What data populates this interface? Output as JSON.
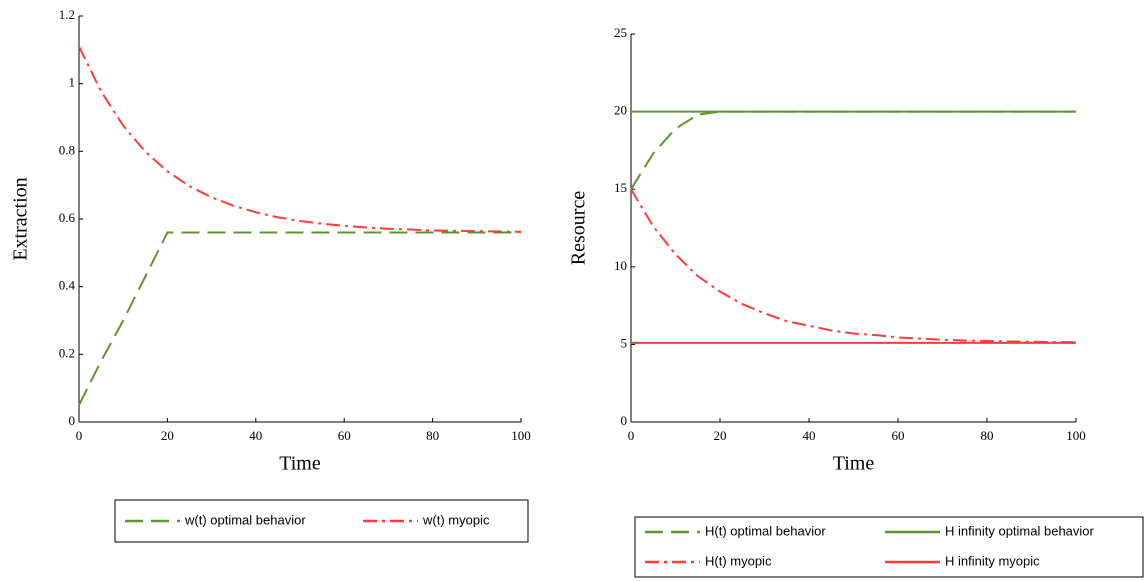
{
  "chart_data": [
    {
      "type": "line",
      "xlabel": "Time",
      "ylabel": "Extraction",
      "x": [
        0,
        5,
        10,
        15,
        20,
        25,
        30,
        35,
        40,
        45,
        50,
        55,
        60,
        65,
        70,
        75,
        80,
        85,
        90,
        95,
        100
      ],
      "xlim": [
        0,
        100
      ],
      "xticks": [
        0,
        20,
        40,
        60,
        80,
        100
      ],
      "ylim": [
        0,
        1.2
      ],
      "yticks": [
        0,
        0.2,
        0.4,
        0.6,
        0.8,
        1,
        1.2
      ],
      "legend": "bottom",
      "series": [
        {
          "name": "w(t) optimal behavior",
          "color": "#5f9634",
          "dash": "dashed",
          "values": [
            0.05,
            0.18,
            0.3,
            0.43,
            0.56,
            0.56,
            0.56,
            0.56,
            0.56,
            0.56,
            0.56,
            0.56,
            0.56,
            0.56,
            0.56,
            0.56,
            0.56,
            0.56,
            0.56,
            0.56,
            0.56
          ]
        },
        {
          "name": "w(t) myopic",
          "color": "#ff3b3b",
          "dash": "dashdot",
          "values": [
            1.11,
            0.977,
            0.876,
            0.799,
            0.741,
            0.697,
            0.664,
            0.639,
            0.62,
            0.605,
            0.594,
            0.586,
            0.58,
            0.575,
            0.571,
            0.569,
            0.566,
            0.565,
            0.564,
            0.563,
            0.562
          ]
        }
      ]
    },
    {
      "type": "line",
      "xlabel": "Time",
      "ylabel": "Resource",
      "x": [
        0,
        5,
        10,
        15,
        20,
        25,
        30,
        35,
        40,
        45,
        50,
        55,
        60,
        65,
        70,
        75,
        80,
        85,
        90,
        95,
        100
      ],
      "xlim": [
        0,
        100
      ],
      "xticks": [
        0,
        20,
        40,
        60,
        80,
        100
      ],
      "ylim": [
        0,
        25
      ],
      "yticks": [
        0,
        5,
        10,
        15,
        20,
        25
      ],
      "legend": "bottom",
      "series": [
        {
          "name": "H(t) optimal behavior",
          "color": "#5f9634",
          "dash": "dashed",
          "values": [
            15,
            17.3,
            18.9,
            19.8,
            20,
            20,
            20,
            20,
            20,
            20,
            20,
            20,
            20,
            20,
            20,
            20,
            20,
            20,
            20,
            20,
            20
          ]
        },
        {
          "name": "H infinity optimal behavior",
          "color": "#5f9634",
          "dash": "solid",
          "values": [
            20,
            20,
            20,
            20,
            20,
            20,
            20,
            20,
            20,
            20,
            20,
            20,
            20,
            20,
            20,
            20,
            20,
            20,
            20,
            20,
            20
          ]
        },
        {
          "name": "H(t) myopic",
          "color": "#ff3b3b",
          "dash": "dashdot",
          "values": [
            15,
            12.6,
            10.8,
            9.4,
            8.4,
            7.6,
            7,
            6.5,
            6.2,
            5.9,
            5.7,
            5.6,
            5.45,
            5.37,
            5.3,
            5.25,
            5.22,
            5.19,
            5.17,
            5.15,
            5.14
          ]
        },
        {
          "name": "H infinity myopic",
          "color": "#ff3b3b",
          "dash": "solid",
          "values": [
            5.1,
            5.1,
            5.1,
            5.1,
            5.1,
            5.1,
            5.1,
            5.1,
            5.1,
            5.1,
            5.1,
            5.1,
            5.1,
            5.1,
            5.1,
            5.1,
            5.1,
            5.1,
            5.1,
            5.1,
            5.1
          ]
        }
      ]
    }
  ]
}
